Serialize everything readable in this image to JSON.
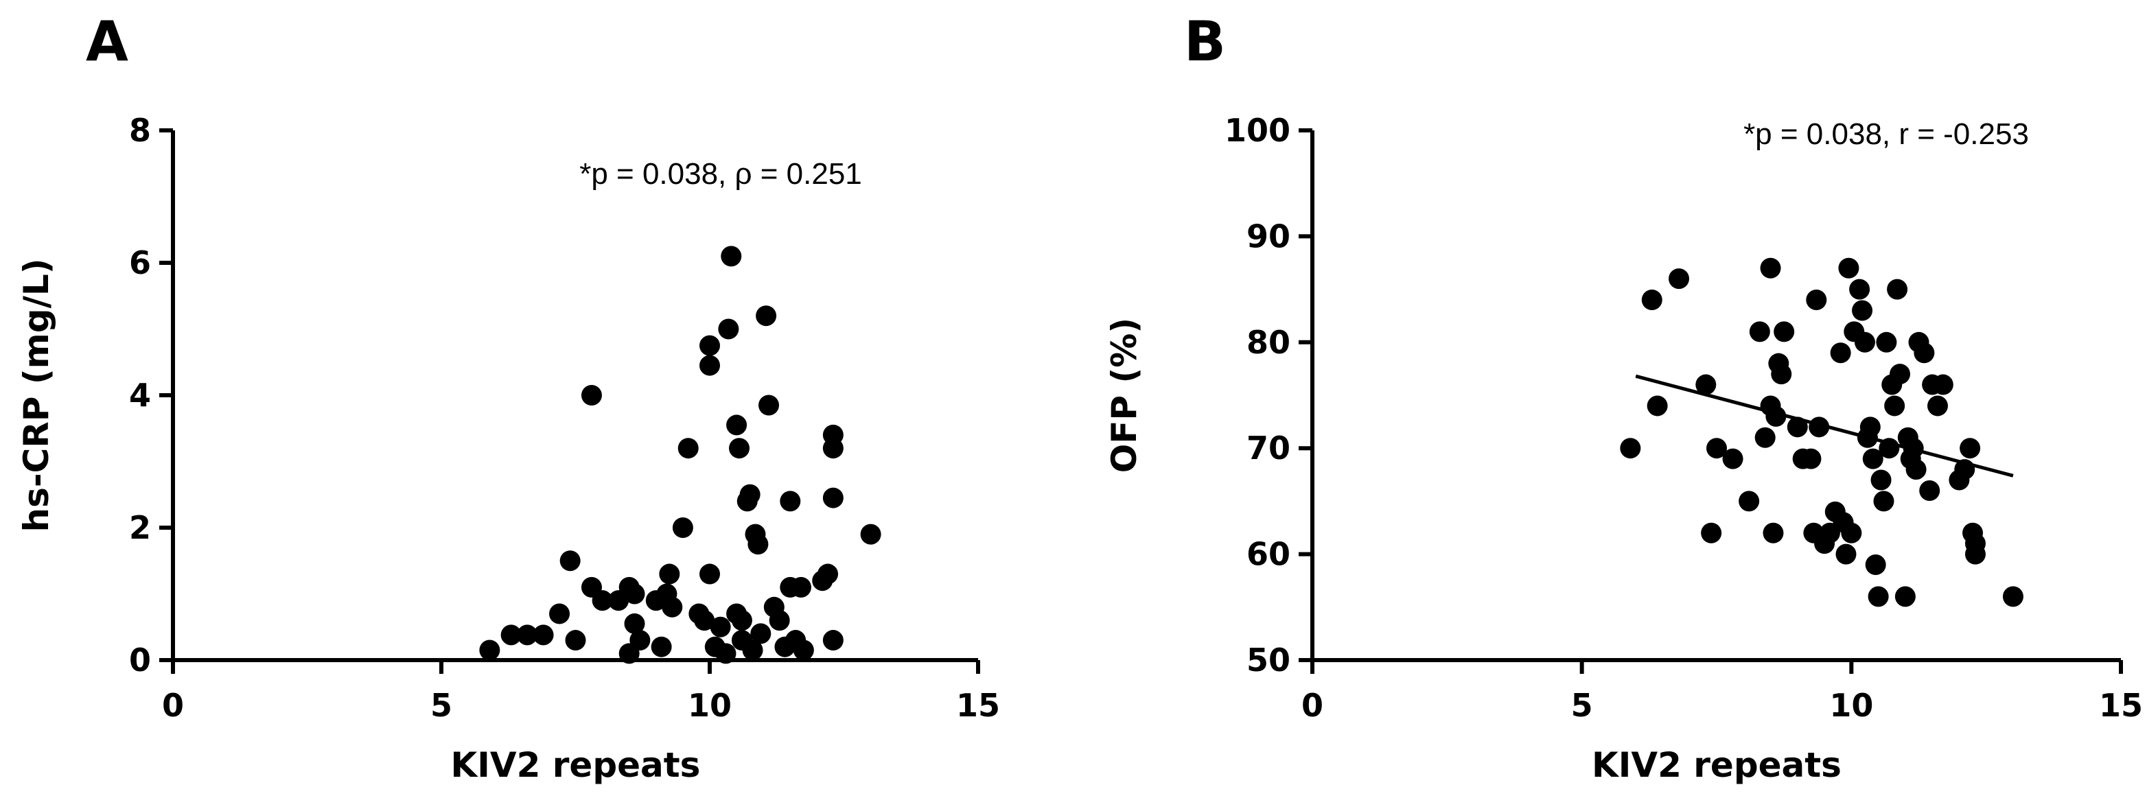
{
  "chart_data": [
    {
      "type": "scatter",
      "panel_label": "A",
      "title": "",
      "xlabel": "KIV2 repeats",
      "ylabel": "hs-CRP (mg/L)",
      "annotation": "*p = 0.038,  ρ = 0.251",
      "xlim": [
        0,
        15
      ],
      "ylim": [
        0,
        8
      ],
      "xticks": [
        0,
        5,
        10,
        15
      ],
      "yticks": [
        0,
        2,
        4,
        6,
        8
      ],
      "grid": false,
      "trendline": null,
      "points": [
        {
          "x": 5.9,
          "y": 0.15
        },
        {
          "x": 6.3,
          "y": 0.38
        },
        {
          "x": 6.6,
          "y": 0.38
        },
        {
          "x": 6.9,
          "y": 0.38
        },
        {
          "x": 7.2,
          "y": 0.7
        },
        {
          "x": 7.4,
          "y": 1.5
        },
        {
          "x": 7.5,
          "y": 0.3
        },
        {
          "x": 7.8,
          "y": 4.0
        },
        {
          "x": 7.8,
          "y": 1.1
        },
        {
          "x": 8.0,
          "y": 0.9
        },
        {
          "x": 8.3,
          "y": 0.9
        },
        {
          "x": 8.5,
          "y": 1.1
        },
        {
          "x": 8.6,
          "y": 1.0
        },
        {
          "x": 8.6,
          "y": 0.55
        },
        {
          "x": 8.5,
          "y": 0.1
        },
        {
          "x": 8.7,
          "y": 0.3
        },
        {
          "x": 9.0,
          "y": 0.9
        },
        {
          "x": 9.1,
          "y": 0.2
        },
        {
          "x": 9.2,
          "y": 1.0
        },
        {
          "x": 9.25,
          "y": 1.3
        },
        {
          "x": 9.3,
          "y": 0.8
        },
        {
          "x": 9.5,
          "y": 2.0
        },
        {
          "x": 9.6,
          "y": 3.2
        },
        {
          "x": 9.8,
          "y": 0.7
        },
        {
          "x": 9.9,
          "y": 0.6
        },
        {
          "x": 10.0,
          "y": 1.3
        },
        {
          "x": 10.0,
          "y": 4.45
        },
        {
          "x": 10.0,
          "y": 4.75
        },
        {
          "x": 10.1,
          "y": 0.2
        },
        {
          "x": 10.2,
          "y": 0.5
        },
        {
          "x": 10.3,
          "y": 0.1
        },
        {
          "x": 10.35,
          "y": 5.0
        },
        {
          "x": 10.4,
          "y": 6.1
        },
        {
          "x": 10.5,
          "y": 3.55
        },
        {
          "x": 10.5,
          "y": 0.7
        },
        {
          "x": 10.55,
          "y": 3.2
        },
        {
          "x": 10.6,
          "y": 0.6
        },
        {
          "x": 10.6,
          "y": 0.3
        },
        {
          "x": 10.7,
          "y": 2.4
        },
        {
          "x": 10.75,
          "y": 2.5
        },
        {
          "x": 10.8,
          "y": 0.15
        },
        {
          "x": 10.85,
          "y": 1.9
        },
        {
          "x": 10.9,
          "y": 1.75
        },
        {
          "x": 10.95,
          "y": 0.4
        },
        {
          "x": 11.05,
          "y": 5.2
        },
        {
          "x": 11.1,
          "y": 3.85
        },
        {
          "x": 11.2,
          "y": 0.8
        },
        {
          "x": 11.3,
          "y": 0.6
        },
        {
          "x": 11.4,
          "y": 0.2
        },
        {
          "x": 11.5,
          "y": 2.4
        },
        {
          "x": 11.5,
          "y": 1.1
        },
        {
          "x": 11.6,
          "y": 0.3
        },
        {
          "x": 11.7,
          "y": 1.1
        },
        {
          "x": 11.75,
          "y": 0.15
        },
        {
          "x": 12.1,
          "y": 1.2
        },
        {
          "x": 12.2,
          "y": 1.3
        },
        {
          "x": 12.3,
          "y": 3.4
        },
        {
          "x": 12.3,
          "y": 3.2
        },
        {
          "x": 12.3,
          "y": 2.45
        },
        {
          "x": 12.3,
          "y": 0.3
        },
        {
          "x": 13.0,
          "y": 1.9
        }
      ]
    },
    {
      "type": "scatter",
      "panel_label": "B",
      "title": "",
      "xlabel": "KIV2 repeats",
      "ylabel": "OFP (%)",
      "annotation": "*p = 0.038,  r = -0.253",
      "xlim": [
        0,
        15
      ],
      "ylim": [
        50,
        100
      ],
      "xticks": [
        0,
        5,
        10,
        15
      ],
      "yticks": [
        50,
        60,
        70,
        80,
        90,
        100
      ],
      "grid": false,
      "trendline": {
        "x": [
          6.0,
          13.0
        ],
        "y": [
          76.8,
          67.4
        ]
      },
      "points": [
        {
          "x": 5.9,
          "y": 70
        },
        {
          "x": 6.3,
          "y": 84
        },
        {
          "x": 6.4,
          "y": 74
        },
        {
          "x": 6.8,
          "y": 86
        },
        {
          "x": 7.3,
          "y": 76
        },
        {
          "x": 7.4,
          "y": 62
        },
        {
          "x": 7.5,
          "y": 70
        },
        {
          "x": 7.8,
          "y": 69
        },
        {
          "x": 8.1,
          "y": 65
        },
        {
          "x": 8.3,
          "y": 81
        },
        {
          "x": 8.4,
          "y": 71
        },
        {
          "x": 8.5,
          "y": 74
        },
        {
          "x": 8.5,
          "y": 87
        },
        {
          "x": 8.55,
          "y": 62
        },
        {
          "x": 8.6,
          "y": 73
        },
        {
          "x": 8.65,
          "y": 78
        },
        {
          "x": 8.7,
          "y": 77
        },
        {
          "x": 8.75,
          "y": 81
        },
        {
          "x": 9.0,
          "y": 72
        },
        {
          "x": 9.1,
          "y": 69
        },
        {
          "x": 9.25,
          "y": 69
        },
        {
          "x": 9.3,
          "y": 62
        },
        {
          "x": 9.35,
          "y": 84
        },
        {
          "x": 9.4,
          "y": 72
        },
        {
          "x": 9.5,
          "y": 61
        },
        {
          "x": 9.6,
          "y": 62
        },
        {
          "x": 9.7,
          "y": 64
        },
        {
          "x": 9.8,
          "y": 79
        },
        {
          "x": 9.85,
          "y": 63
        },
        {
          "x": 9.9,
          "y": 60
        },
        {
          "x": 9.95,
          "y": 87
        },
        {
          "x": 10.0,
          "y": 62
        },
        {
          "x": 10.05,
          "y": 81
        },
        {
          "x": 10.15,
          "y": 85
        },
        {
          "x": 10.2,
          "y": 83
        },
        {
          "x": 10.25,
          "y": 80
        },
        {
          "x": 10.3,
          "y": 71
        },
        {
          "x": 10.35,
          "y": 72
        },
        {
          "x": 10.4,
          "y": 69
        },
        {
          "x": 10.45,
          "y": 59
        },
        {
          "x": 10.5,
          "y": 56
        },
        {
          "x": 10.55,
          "y": 67
        },
        {
          "x": 10.6,
          "y": 65
        },
        {
          "x": 10.65,
          "y": 80
        },
        {
          "x": 10.7,
          "y": 70
        },
        {
          "x": 10.75,
          "y": 76
        },
        {
          "x": 10.8,
          "y": 74
        },
        {
          "x": 10.85,
          "y": 85
        },
        {
          "x": 10.9,
          "y": 77
        },
        {
          "x": 11.0,
          "y": 56
        },
        {
          "x": 11.05,
          "y": 71
        },
        {
          "x": 11.1,
          "y": 69
        },
        {
          "x": 11.15,
          "y": 70
        },
        {
          "x": 11.2,
          "y": 68
        },
        {
          "x": 11.25,
          "y": 80
        },
        {
          "x": 11.35,
          "y": 79
        },
        {
          "x": 11.45,
          "y": 66
        },
        {
          "x": 11.5,
          "y": 76
        },
        {
          "x": 11.6,
          "y": 74
        },
        {
          "x": 11.7,
          "y": 76
        },
        {
          "x": 12.0,
          "y": 67
        },
        {
          "x": 12.1,
          "y": 68
        },
        {
          "x": 12.2,
          "y": 70
        },
        {
          "x": 12.25,
          "y": 62
        },
        {
          "x": 12.3,
          "y": 61
        },
        {
          "x": 12.3,
          "y": 60
        },
        {
          "x": 13.0,
          "y": 56
        }
      ]
    }
  ]
}
